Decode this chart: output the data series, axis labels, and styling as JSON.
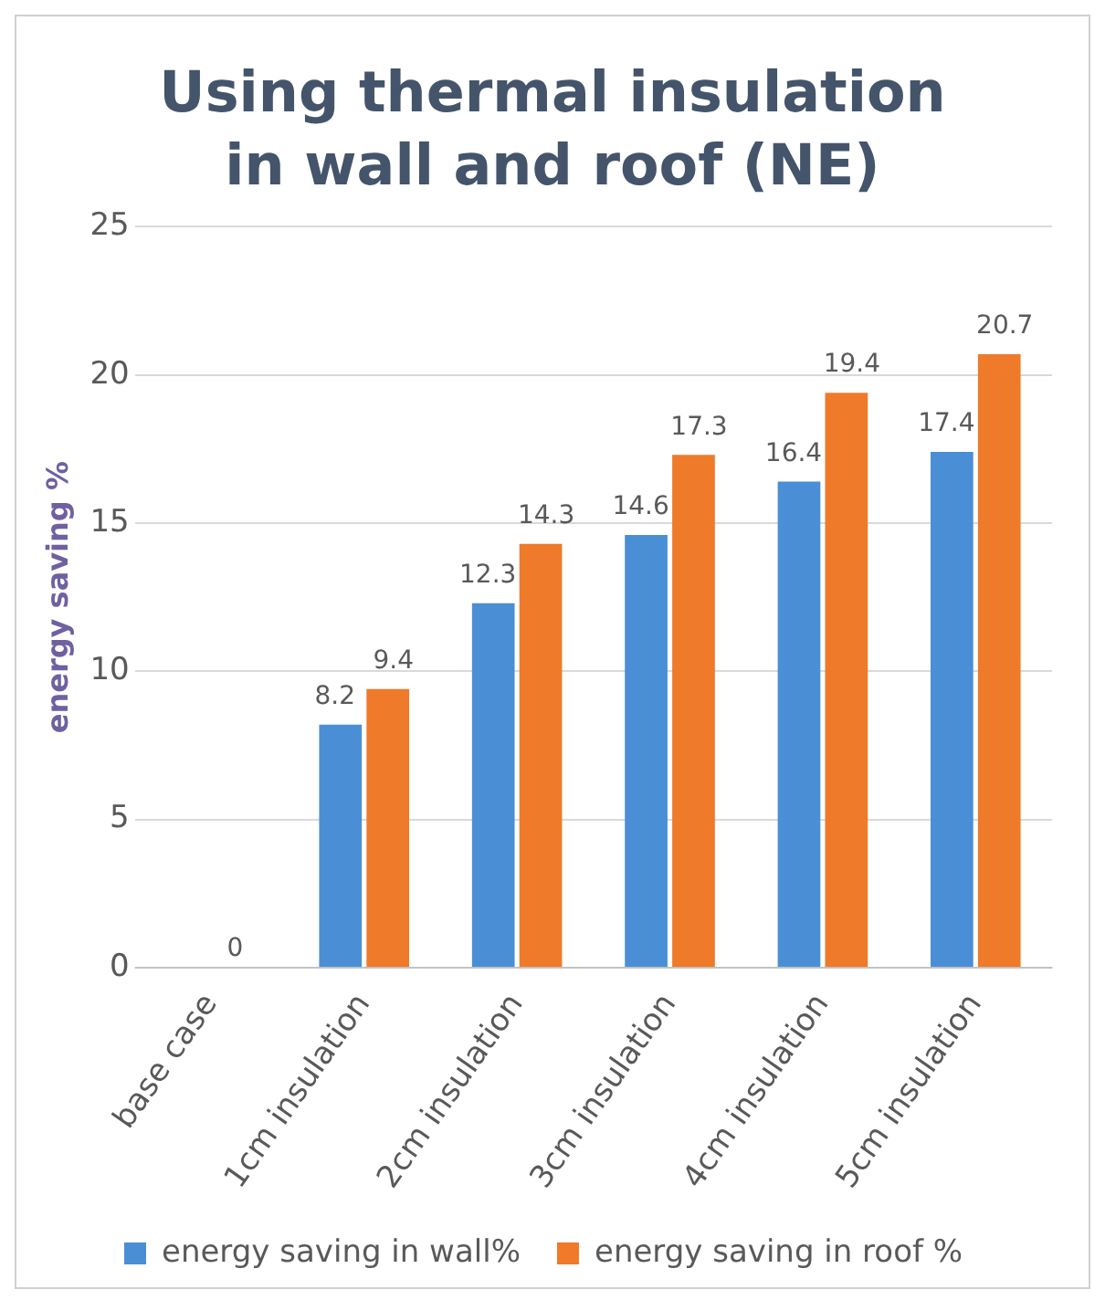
{
  "chart_data": {
    "type": "bar",
    "title": "Using thermal insulation in wall and roof (NE)",
    "ylabel": "energy saving %",
    "categories": [
      "base case",
      "1cm insulation",
      "2cm insulation",
      "3cm insulation",
      "4cm insulation",
      "5cm insulation"
    ],
    "series": [
      {
        "name": "energy saving in wall%",
        "color": "#4a8fd6",
        "values": [
          null,
          8.2,
          12.3,
          14.6,
          16.4,
          17.4
        ],
        "value_labels": [
          null,
          "8.2",
          "12.3",
          "14.6",
          "16.4",
          "17.4"
        ]
      },
      {
        "name": "energy saving in roof %",
        "color": "#ee7a2a",
        "values": [
          0,
          9.4,
          14.3,
          17.3,
          19.4,
          20.7
        ],
        "value_labels": [
          "0",
          "9.4",
          "14.3",
          "17.3",
          "19.4",
          "20.7"
        ]
      }
    ],
    "ylim": [
      0,
      25
    ],
    "yticks": [
      0,
      5,
      10,
      15,
      20,
      25
    ],
    "grid": "y",
    "legend": "bottom"
  }
}
